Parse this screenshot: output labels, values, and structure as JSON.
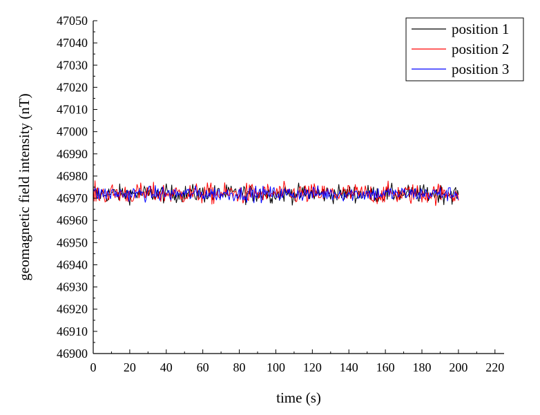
{
  "chart_data": {
    "type": "line",
    "xlabel": "time (s)",
    "ylabel": "geomagnetic field intensity (nT)",
    "xlim": [
      0,
      225
    ],
    "ylim": [
      46900,
      47050
    ],
    "x_ticks": [
      "0",
      "20",
      "40",
      "60",
      "80",
      "100",
      "120",
      "140",
      "160",
      "180",
      "200",
      "220"
    ],
    "y_ticks": [
      "46900",
      "46910",
      "46920",
      "46930",
      "46940",
      "46950",
      "46960",
      "46970",
      "46980",
      "46990",
      "47000",
      "47010",
      "47020",
      "47030",
      "47040",
      "47050"
    ],
    "legend_position": "top-right",
    "sample_interval_s": 0.5,
    "series": [
      {
        "name": "position 1",
        "color": "#000000",
        "x_range": [
          0,
          200
        ],
        "mean": 46972,
        "min": 46966,
        "max": 46978
      },
      {
        "name": "position 2",
        "color": "#ff0000",
        "x_range": [
          0,
          200
        ],
        "mean": 46972,
        "min": 46965,
        "max": 46978
      },
      {
        "name": "position 3",
        "color": "#0000ff",
        "x_range": [
          0,
          200
        ],
        "mean": 46972,
        "min": 46967,
        "max": 46977
      }
    ]
  }
}
